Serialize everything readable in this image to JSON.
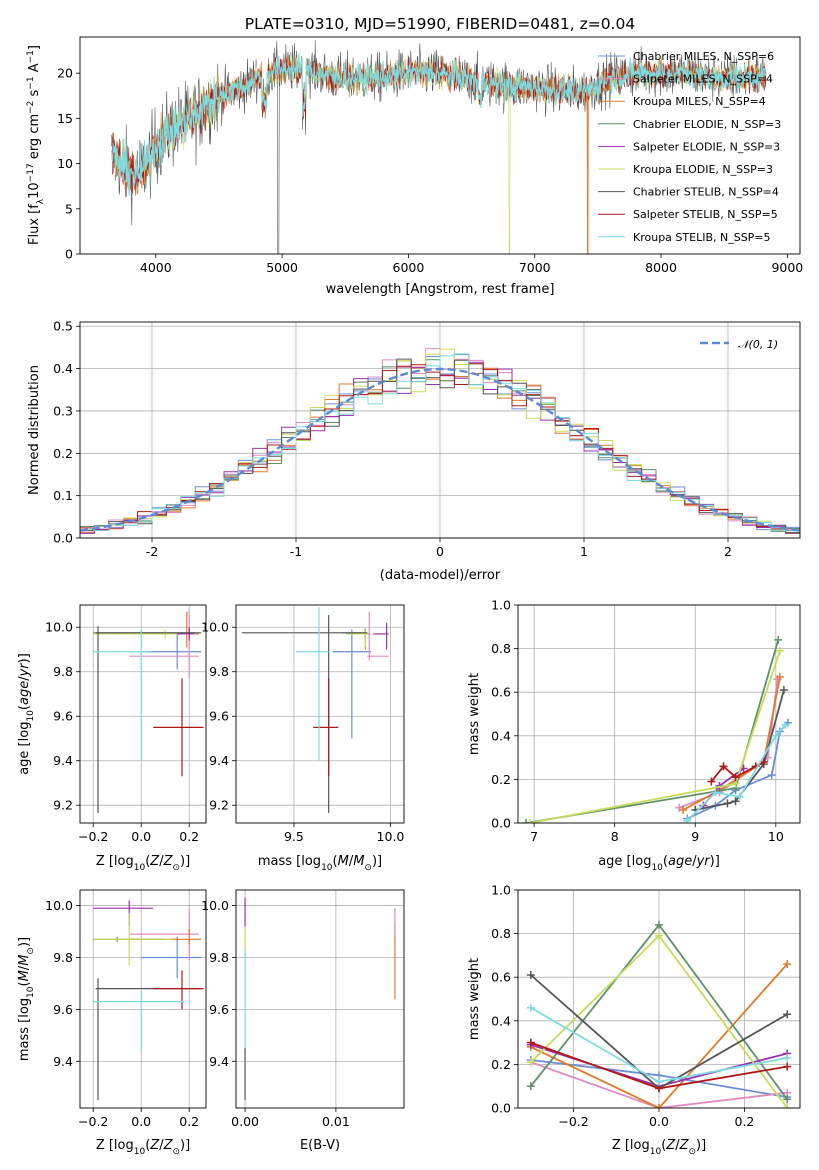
{
  "colors": {
    "ChabrierMILES": "#6b8fd6",
    "SalpeterMILES": "#e08bc0",
    "KroupaMILES": "#e07b2a",
    "ChabrierELODIE": "#5f8f6b",
    "SalpeterELODIE": "#9b30b0",
    "KroupaELODIE": "#c7dc5a",
    "ChabrierSTELIB": "#555555",
    "SalpeterSTELIB": "#b01818",
    "KroupaSTELIB": "#7ddbe2"
  },
  "chart_data": [
    {
      "id": "spectrum",
      "type": "line",
      "title": "PLATE=0310, MJD=51990, FIBERID=0481, z=0.04",
      "xlabel": "wavelength [Angstrom, rest frame]",
      "ylabel": "Flux [fλ10⁻¹⁷ erg cm⁻² s⁻¹ A⁻¹]",
      "xlim": [
        3400,
        9100
      ],
      "ylim": [
        0,
        24
      ],
      "xticks": [
        4000,
        5000,
        6000,
        7000,
        8000,
        9000
      ],
      "yticks": [
        0,
        5,
        10,
        15,
        20
      ],
      "legend_position": "upper right",
      "legend": [
        "Chabrier MILES, N_SSP=6",
        "Salpeter MILES, N_SSP=4",
        "Kroupa MILES, N_SSP=4",
        "Chabrier ELODIE, N_SSP=3",
        "Salpeter ELODIE, N_SSP=3",
        "Kroupa ELODIE, N_SSP=3",
        "Chabrier STELIB, N_SSP=4",
        "Salpeter STELIB, N_SSP=5",
        "Kroupa STELIB, N_SSP=5"
      ],
      "envelope": {
        "x": [
          3650,
          3750,
          3850,
          3950,
          4000,
          4100,
          4200,
          4300,
          4400,
          4500,
          4600,
          4700,
          4800,
          4900,
          5000,
          5200,
          5400,
          5600,
          5800,
          6000,
          6200,
          6400,
          6600,
          6800,
          7000,
          7200,
          7400,
          7600,
          7800,
          8000,
          8200,
          8400,
          8600,
          8830
        ],
        "y": [
          11,
          9.5,
          8.5,
          10.5,
          12,
          13.5,
          14.5,
          15,
          16.5,
          17.5,
          18,
          18.5,
          19.5,
          20,
          20.5,
          20.5,
          19.5,
          19.5,
          19.5,
          20,
          20,
          19.5,
          19,
          18.5,
          18.5,
          18,
          18,
          19.5,
          20,
          20,
          20,
          19.5,
          19.5,
          19.8
        ]
      },
      "dropouts": [
        {
          "series": "ChabrierSTELIB",
          "x": 4970
        },
        {
          "series": "KroupaELODIE",
          "x": 6800
        },
        {
          "series": "KroupaMILES",
          "x": 7420
        }
      ]
    },
    {
      "id": "residuals",
      "type": "bar",
      "xlabel": "(data-model)/error",
      "ylabel": "Normed distribution",
      "xlim": [
        -2.5,
        2.5
      ],
      "ylim": [
        0,
        0.51
      ],
      "xticks": [
        -2,
        -1,
        0,
        1,
        2
      ],
      "yticks": [
        0.0,
        0.1,
        0.2,
        0.3,
        0.4,
        0.5
      ],
      "grid": true,
      "bin_edges": [
        -2.5,
        -2.4,
        -2.3,
        -2.2,
        -2.1,
        -2.0,
        -1.9,
        -1.8,
        -1.7,
        -1.6,
        -1.5,
        -1.4,
        -1.3,
        -1.2,
        -1.1,
        -1.0,
        -0.9,
        -0.8,
        -0.7,
        -0.6,
        -0.5,
        -0.4,
        -0.3,
        -0.2,
        -0.1,
        0.0,
        0.1,
        0.2,
        0.3,
        0.4,
        0.5,
        0.6,
        0.7,
        0.8,
        0.9,
        1.0,
        1.1,
        1.2,
        1.3,
        1.4,
        1.5,
        1.6,
        1.7,
        1.8,
        1.9,
        2.0,
        2.1,
        2.2,
        2.3,
        2.4,
        2.5
      ],
      "model": {
        "label": "𝒩(0, 1)",
        "mean": 0,
        "sigma": 1,
        "style": "dashed",
        "color": "#5b8ad6"
      },
      "legend_position": "upper right"
    },
    {
      "id": "age-vs-Z",
      "type": "scatter",
      "xlabel": "Z [log₁₀(Z/Z⊙)]",
      "ylabel": "age  [log₁₀(age/yr)]",
      "xlim": [
        -0.255,
        0.27
      ],
      "ylim": [
        9.12,
        10.1
      ],
      "xticks": [
        -0.2,
        0.0,
        0.2
      ],
      "xtick_labels": [
        "−0.2",
        "0.0",
        "0.2"
      ],
      "yticks": [
        9.2,
        9.4,
        9.6,
        9.8,
        10.0
      ],
      "grid": true,
      "points": [
        {
          "series": "ChabrierMILES",
          "x": 0.15,
          "y": 9.89,
          "xerr": [
            0.15,
            0.1
          ],
          "yerr": [
            0.08,
            0.08
          ]
        },
        {
          "series": "SalpeterMILES",
          "x": 0.2,
          "y": 9.87,
          "xerr": [
            0.25,
            0.04
          ],
          "yerr": [
            0.1,
            0.2
          ]
        },
        {
          "series": "KroupaMILES",
          "x": 0.19,
          "y": 9.97,
          "xerr": [
            0.26,
            0.05
          ],
          "yerr": [
            0.06,
            0.1
          ]
        },
        {
          "series": "ChabrierELODIE",
          "x": 0.2,
          "y": 9.975,
          "xerr": [
            0.4,
            0.02
          ],
          "yerr": [
            0.02,
            0.02
          ]
        },
        {
          "series": "SalpeterELODIE",
          "x": 0.2,
          "y": 9.97,
          "xerr": [
            0.05,
            0.02
          ],
          "yerr": [
            0.03,
            0.03
          ]
        },
        {
          "series": "KroupaELODIE",
          "x": 0.1,
          "y": 9.97,
          "xerr": [
            0.3,
            0.05
          ],
          "yerr": [
            0.02,
            0.02
          ]
        },
        {
          "series": "ChabrierSTELIB",
          "x": -0.18,
          "y": 9.975,
          "xerr": [
            0.01,
            0.43
          ],
          "yerr": [
            0.81,
            0.03
          ]
        },
        {
          "series": "SalpeterSTELIB",
          "x": 0.17,
          "y": 9.55,
          "xerr": [
            0.12,
            0.09
          ],
          "yerr": [
            0.22,
            0.22
          ]
        },
        {
          "series": "KroupaSTELIB",
          "x": 0.0,
          "y": 9.89,
          "xerr": [
            0.2,
            0.04
          ],
          "yerr": [
            0.49,
            0.1
          ]
        }
      ]
    },
    {
      "id": "age-vs-mass",
      "type": "scatter",
      "xlabel": "mass [log₁₀(M/M⊙)]",
      "xlim": [
        9.2,
        10.07
      ],
      "ylim": [
        9.12,
        10.1
      ],
      "xticks": [
        9.5,
        10.0
      ],
      "yticks": [
        9.2,
        9.4,
        9.6,
        9.8,
        10.0
      ],
      "grid": true,
      "points": [
        {
          "series": "ChabrierMILES",
          "x": 9.8,
          "y": 9.89,
          "xerr": [
            0.1,
            0.1
          ],
          "yerr": [
            0.39,
            0.1
          ]
        },
        {
          "series": "SalpeterMILES",
          "x": 9.89,
          "y": 9.87,
          "xerr": [
            0.01,
            0.1
          ],
          "yerr": [
            0.02,
            0.2
          ]
        },
        {
          "series": "KroupaMILES",
          "x": 9.87,
          "y": 9.97,
          "xerr": [
            0.01,
            0.02
          ],
          "yerr": [
            0.07,
            0.02
          ]
        },
        {
          "series": "ChabrierELODIE",
          "x": 9.87,
          "y": 9.975,
          "xerr": [
            0.12,
            0.01
          ],
          "yerr": [
            0.02,
            0.02
          ]
        },
        {
          "series": "SalpeterELODIE",
          "x": 9.98,
          "y": 9.97,
          "xerr": [
            0.07,
            0.01
          ],
          "yerr": [
            0.07,
            0.05
          ]
        },
        {
          "series": "KroupaELODIE",
          "x": 9.87,
          "y": 9.97,
          "xerr": [
            0.1,
            0.01
          ],
          "yerr": [
            0.06,
            0.02
          ]
        },
        {
          "series": "ChabrierSTELIB",
          "x": 9.68,
          "y": 9.975,
          "xerr": [
            0.45,
            0.2
          ],
          "yerr": [
            0.81,
            0.08
          ]
        },
        {
          "series": "SalpeterSTELIB",
          "x": 9.68,
          "y": 9.55,
          "xerr": [
            0.08,
            0.05
          ],
          "yerr": [
            0.22,
            0.22
          ]
        },
        {
          "series": "KroupaSTELIB",
          "x": 9.63,
          "y": 9.89,
          "xerr": [
            0.12,
            0.05
          ],
          "yerr": [
            0.49,
            0.2
          ]
        }
      ]
    },
    {
      "id": "weight-vs-age",
      "type": "line",
      "xlabel": "age  [log₁₀(age/yr)]",
      "ylabel": "mass weight",
      "xlim": [
        6.8,
        10.3
      ],
      "ylim": [
        0,
        1.0
      ],
      "xticks": [
        7,
        8,
        9,
        10
      ],
      "yticks": [
        0.0,
        0.2,
        0.4,
        0.6,
        0.8,
        1.0
      ],
      "grid": true,
      "series": [
        {
          "series": "ChabrierMILES",
          "x": [
            8.9,
            9.25,
            9.5,
            9.95,
            10.05,
            10.15
          ],
          "y": [
            0.02,
            0.08,
            0.15,
            0.22,
            0.42,
            0.46
          ]
        },
        {
          "series": "SalpeterMILES",
          "x": [
            8.8,
            9.3,
            9.9,
            10.02
          ],
          "y": [
            0.07,
            0.14,
            0.3,
            0.66
          ]
        },
        {
          "series": "KroupaMILES",
          "x": [
            8.85,
            9.3,
            9.85,
            10.05
          ],
          "y": [
            0.06,
            0.15,
            0.28,
            0.67
          ]
        },
        {
          "series": "ChabrierELODIE",
          "x": [
            6.9,
            9.5,
            10.03
          ],
          "y": [
            0.0,
            0.16,
            0.84
          ]
        },
        {
          "series": "SalpeterELODIE",
          "x": [
            9.1,
            9.3,
            9.6
          ],
          "y": [
            0.08,
            0.17,
            0.25
          ]
        },
        {
          "series": "KroupaELODIE",
          "x": [
            6.95,
            9.5,
            10.05
          ],
          "y": [
            0.0,
            0.18,
            0.79
          ]
        },
        {
          "series": "ChabrierSTELIB",
          "x": [
            9.0,
            9.4,
            9.5,
            9.85,
            10.1
          ],
          "y": [
            0.06,
            0.09,
            0.1,
            0.27,
            0.61
          ]
        },
        {
          "series": "SalpeterSTELIB",
          "x": [
            9.2,
            9.35,
            9.5,
            9.75,
            9.85
          ],
          "y": [
            0.19,
            0.26,
            0.21,
            0.26,
            0.28
          ]
        },
        {
          "series": "KroupaSTELIB",
          "x": [
            8.9,
            9.25,
            9.55,
            10.0,
            10.12
          ],
          "y": [
            0.01,
            0.14,
            0.12,
            0.4,
            0.45
          ]
        }
      ]
    },
    {
      "id": "mass-vs-Z",
      "type": "scatter",
      "xlabel": "Z [log₁₀(Z/Z⊙)]",
      "ylabel": "mass [log₁₀(M/M⊙)]",
      "xlim": [
        -0.255,
        0.27
      ],
      "ylim": [
        9.22,
        10.06
      ],
      "xticks": [
        -0.2,
        0.0,
        0.2
      ],
      "xtick_labels": [
        "−0.2",
        "0.0",
        "0.2"
      ],
      "yticks": [
        9.4,
        9.6,
        9.8,
        10.0
      ],
      "grid": true,
      "points": [
        {
          "series": "ChabrierMILES",
          "x": 0.15,
          "y": 9.8,
          "xerr": [
            0.15,
            0.1
          ],
          "yerr": [
            0.08,
            0.08
          ]
        },
        {
          "series": "SalpeterMILES",
          "x": 0.2,
          "y": 9.89,
          "xerr": [
            0.25,
            0.04
          ],
          "yerr": [
            0.1,
            0.1
          ]
        },
        {
          "series": "KroupaMILES",
          "x": 0.2,
          "y": 9.87,
          "xerr": [
            0.26,
            0.05
          ],
          "yerr": [
            0.02,
            0.04
          ]
        },
        {
          "series": "ChabrierELODIE",
          "x": -0.1,
          "y": 9.87,
          "xerr": [
            0.1,
            0.2
          ],
          "yerr": [
            0.01,
            0.01
          ]
        },
        {
          "series": "SalpeterELODIE",
          "x": -0.05,
          "y": 9.99,
          "xerr": [
            0.15,
            0.1
          ],
          "yerr": [
            0.07,
            0.03
          ]
        },
        {
          "series": "KroupaELODIE",
          "x": -0.05,
          "y": 9.87,
          "xerr": [
            0.15,
            0.18
          ],
          "yerr": [
            0.1,
            0.1
          ]
        },
        {
          "series": "ChabrierSTELIB",
          "x": -0.18,
          "y": 9.68,
          "xerr": [
            0.01,
            0.43
          ],
          "yerr": [
            0.43,
            0.04
          ]
        },
        {
          "series": "SalpeterSTELIB",
          "x": 0.17,
          "y": 9.68,
          "xerr": [
            0.12,
            0.09
          ],
          "yerr": [
            0.08,
            0.07
          ]
        },
        {
          "series": "KroupaSTELIB",
          "x": 0.0,
          "y": 9.63,
          "xerr": [
            0.2,
            0.18
          ],
          "yerr": [
            0.19,
            0.04
          ]
        }
      ]
    },
    {
      "id": "mass-vs-EBV",
      "type": "scatter",
      "xlabel": "E(B-V)",
      "xlim": [
        -0.001,
        0.0175
      ],
      "ylim": [
        9.22,
        10.06
      ],
      "xticks": [
        0.0,
        0.01
      ],
      "xtick_labels": [
        "0.00",
        "0.01"
      ],
      "yticks": [
        9.4,
        9.6,
        9.8,
        10.0
      ],
      "grid": true,
      "points": [
        {
          "series": "SalpeterELODIE",
          "x": 0.0,
          "y": 9.99,
          "yerr": [
            0.07,
            0.04
          ]
        },
        {
          "series": "KroupaELODIE",
          "x": 0.0,
          "y": 9.87,
          "yerr": [
            0.1,
            0.04
          ]
        },
        {
          "series": "KroupaSTELIB",
          "x": 0.0,
          "y": 9.63,
          "yerr": [
            0.19,
            0.2
          ]
        },
        {
          "series": "ChabrierSTELIB",
          "x": 0.0,
          "y": 9.35,
          "yerr": [
            0.1,
            0.1
          ]
        },
        {
          "series": "KroupaMILES",
          "x": 0.0165,
          "y": 9.87,
          "yerr": [
            0.23,
            0.06
          ]
        },
        {
          "series": "SalpeterMILES",
          "x": 0.0165,
          "y": 9.89,
          "yerr": [
            0.01,
            0.1
          ]
        }
      ]
    },
    {
      "id": "weight-vs-Z",
      "type": "line",
      "xlabel": "Z [log₁₀(Z/Z⊙)]",
      "ylabel": "mass weight",
      "xlim": [
        -0.33,
        0.33
      ],
      "ylim": [
        0,
        1.0
      ],
      "xticks": [
        -0.2,
        0.0,
        0.2
      ],
      "xtick_labels": [
        "−0.2",
        "0.0",
        "0.2"
      ],
      "yticks": [
        0.0,
        0.2,
        0.4,
        0.6,
        0.8,
        1.0
      ],
      "grid": true,
      "series": [
        {
          "series": "ChabrierMILES",
          "x": [
            -0.3,
            0.0,
            0.3
          ],
          "y": [
            0.22,
            0.15,
            0.05
          ]
        },
        {
          "series": "SalpeterMILES",
          "x": [
            -0.3,
            0.0,
            0.3
          ],
          "y": [
            0.21,
            0.0,
            0.07
          ]
        },
        {
          "series": "KroupaMILES",
          "x": [
            -0.3,
            0.0,
            0.3
          ],
          "y": [
            0.28,
            0.0,
            0.66
          ]
        },
        {
          "series": "ChabrierELODIE",
          "x": [
            -0.3,
            0.0,
            0.3
          ],
          "y": [
            0.1,
            0.84,
            0.04
          ]
        },
        {
          "series": "SalpeterELODIE",
          "x": [
            -0.3,
            0.0,
            0.3
          ],
          "y": [
            0.29,
            0.1,
            0.25
          ]
        },
        {
          "series": "KroupaELODIE",
          "x": [
            -0.3,
            0.0,
            0.3
          ],
          "y": [
            0.21,
            0.79,
            0.0
          ]
        },
        {
          "series": "ChabrierSTELIB",
          "x": [
            -0.3,
            0.0,
            0.3
          ],
          "y": [
            0.61,
            0.09,
            0.43
          ]
        },
        {
          "series": "SalpeterSTELIB",
          "x": [
            -0.3,
            0.0,
            0.3
          ],
          "y": [
            0.3,
            0.09,
            0.19
          ]
        },
        {
          "series": "KroupaSTELIB",
          "x": [
            -0.3,
            0.0,
            0.3
          ],
          "y": [
            0.46,
            0.12,
            0.23
          ]
        }
      ]
    }
  ]
}
